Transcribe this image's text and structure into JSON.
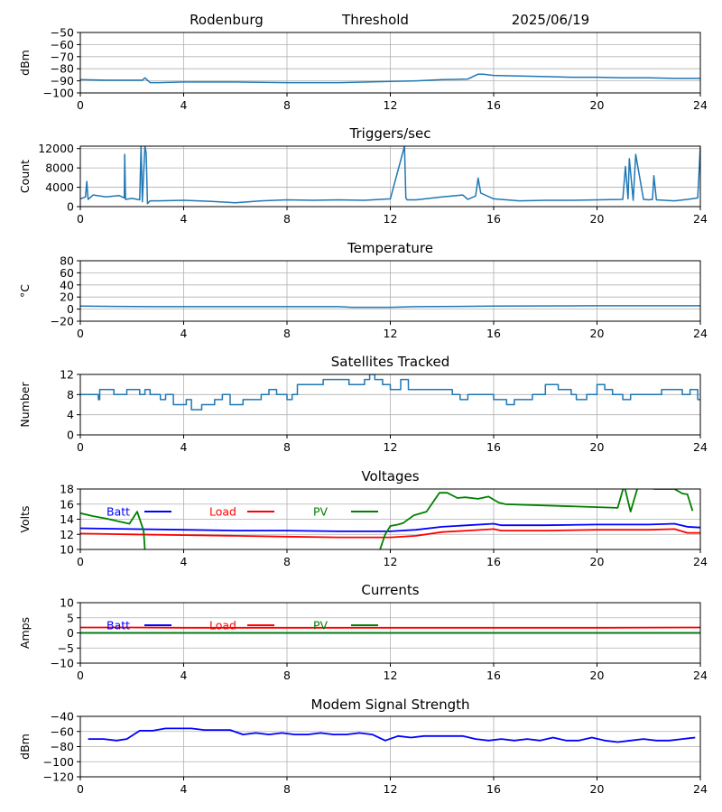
{
  "header": {
    "station": "Rodenburg",
    "mode": "Threshold",
    "date": "2025/06/19"
  },
  "chart_data": [
    {
      "id": "signal",
      "type": "line",
      "title": "",
      "xlabel": "",
      "ylabel": "dBm",
      "xlim": [
        0,
        24
      ],
      "ylim": [
        -100,
        -50
      ],
      "xticks": [
        0,
        4,
        8,
        12,
        16,
        20,
        24
      ],
      "yticks": [
        -100,
        -90,
        -80,
        -70,
        -60,
        -50
      ],
      "ytick_labels": [
        "−100",
        "−90",
        "−80",
        "−70",
        "−60",
        "−50"
      ],
      "grid": true,
      "series": [
        {
          "color": "#1f77b4",
          "width": 1.5,
          "x": [
            0,
            1,
            2,
            2.4,
            2.5,
            2.7,
            3,
            4,
            6,
            8,
            10,
            12,
            13,
            14,
            15,
            15.4,
            15.6,
            16,
            17,
            18,
            19,
            20,
            21,
            22,
            23,
            24
          ],
          "y": [
            -89,
            -89.5,
            -89.5,
            -89.5,
            -87.5,
            -91.5,
            -91.5,
            -91,
            -91,
            -91.5,
            -91.5,
            -90.5,
            -90,
            -89,
            -88.5,
            -84.5,
            -84.5,
            -85.5,
            -86,
            -86.5,
            -87,
            -87,
            -87.5,
            -87.5,
            -88,
            -88
          ]
        }
      ]
    },
    {
      "id": "triggers",
      "type": "line",
      "title": "Triggers/sec",
      "xlabel": "",
      "ylabel": "Count",
      "xlim": [
        0,
        24
      ],
      "ylim": [
        0,
        12500
      ],
      "xticks": [
        0,
        4,
        8,
        12,
        16,
        20,
        24
      ],
      "yticks": [
        0,
        4000,
        8000,
        12000
      ],
      "ytick_labels": [
        "0",
        "4000",
        "8000",
        "12000"
      ],
      "grid": true,
      "series": [
        {
          "color": "#1f77b4",
          "width": 1.5,
          "x": [
            0,
            0.2,
            0.25,
            0.3,
            0.5,
            1,
            1.5,
            1.7,
            1.72,
            1.75,
            2,
            2.3,
            2.35,
            2.4,
            2.5,
            2.55,
            2.6,
            2.7,
            3,
            4,
            5,
            6,
            7,
            8,
            9,
            10,
            11,
            12,
            12.55,
            12.6,
            12.65,
            13,
            14,
            14.8,
            15,
            15.3,
            15.4,
            15.5,
            16,
            17,
            18,
            19,
            20,
            21,
            21.1,
            21.2,
            21.25,
            21.4,
            21.5,
            21.8,
            22,
            22.15,
            22.2,
            22.3,
            23,
            23.5,
            23.9,
            24
          ],
          "y": [
            1600,
            2000,
            5200,
            1500,
            2400,
            2000,
            2300,
            1800,
            10800,
            1500,
            1700,
            1400,
            12500,
            1000,
            12500,
            11000,
            600,
            1200,
            1200,
            1300,
            1100,
            800,
            1200,
            1400,
            1300,
            1400,
            1300,
            1600,
            12500,
            1800,
            1400,
            1400,
            2000,
            2400,
            1500,
            2200,
            5900,
            2800,
            1600,
            1200,
            1300,
            1300,
            1400,
            1500,
            8300,
            1600,
            9900,
            1300,
            10800,
            1500,
            1400,
            1500,
            6400,
            1400,
            1200,
            1500,
            1800,
            12500
          ]
        }
      ]
    },
    {
      "id": "temperature",
      "type": "line",
      "title": "Temperature",
      "xlabel": "",
      "ylabel": "°C",
      "xlim": [
        0,
        24
      ],
      "ylim": [
        -20,
        80
      ],
      "xticks": [
        0,
        4,
        8,
        12,
        16,
        20,
        24
      ],
      "yticks": [
        -20,
        0,
        20,
        40,
        60,
        80
      ],
      "ytick_labels": [
        "−20",
        "0",
        "20",
        "40",
        "60",
        "80"
      ],
      "grid": true,
      "series": [
        {
          "color": "#1f77b4",
          "width": 1.5,
          "x": [
            0,
            3,
            8,
            10,
            10.5,
            12,
            13,
            16,
            20,
            24
          ],
          "y": [
            5,
            4,
            4,
            4,
            3,
            3,
            4,
            5,
            5.5,
            5.5
          ]
        }
      ]
    },
    {
      "id": "satellites",
      "type": "line",
      "title": "Satellites Tracked",
      "xlabel": "",
      "ylabel": "Number",
      "xlim": [
        0,
        24
      ],
      "ylim": [
        0,
        12
      ],
      "xticks": [
        0,
        4,
        8,
        12,
        16,
        20,
        24
      ],
      "yticks": [
        0,
        4,
        8,
        12
      ],
      "ytick_labels": [
        "0",
        "4",
        "8",
        "12"
      ],
      "grid": true,
      "step": true,
      "series": [
        {
          "color": "#1f77b4",
          "width": 1.5,
          "x": [
            0,
            0.4,
            0.7,
            0.75,
            1.3,
            1.8,
            2.3,
            2.5,
            2.7,
            3.1,
            3.3,
            3.6,
            4.1,
            4.3,
            4.7,
            5.2,
            5.5,
            5.8,
            6.3,
            7,
            7.3,
            7.6,
            8,
            8.2,
            8.4,
            9,
            9.4,
            10,
            10.4,
            11,
            11.2,
            11.4,
            11.7,
            12,
            12.4,
            12.7,
            13.5,
            14,
            14.4,
            14.7,
            15,
            16,
            16.5,
            16.8,
            17.5,
            18,
            18.5,
            19,
            19.2,
            19.6,
            20,
            20.3,
            20.6,
            21,
            21.3,
            22,
            22.5,
            23,
            23.3,
            23.6,
            23.9,
            24
          ],
          "y": [
            8,
            8,
            7,
            9,
            8,
            9,
            8,
            9,
            8,
            7,
            8,
            6,
            7,
            5,
            6,
            7,
            8,
            6,
            7,
            8,
            9,
            8,
            7,
            8,
            10,
            10,
            11,
            11,
            10,
            11,
            12,
            11,
            10,
            9,
            11,
            9,
            9,
            9,
            8,
            7,
            8,
            7,
            6,
            7,
            8,
            10,
            9,
            8,
            7,
            8,
            10,
            9,
            8,
            7,
            8,
            8,
            9,
            9,
            8,
            9,
            7,
            7
          ]
        }
      ]
    },
    {
      "id": "voltages",
      "type": "line",
      "title": "Voltages",
      "xlabel": "",
      "ylabel": "Volts",
      "xlim": [
        0,
        24
      ],
      "ylim": [
        10,
        18
      ],
      "xticks": [
        0,
        4,
        8,
        12,
        16,
        20,
        24
      ],
      "yticks": [
        10,
        12,
        14,
        16,
        18
      ],
      "ytick_labels": [
        "10",
        "12",
        "14",
        "16",
        "18"
      ],
      "grid": true,
      "legend": [
        "Batt",
        "Load",
        "PV"
      ],
      "series": [
        {
          "name": "Batt",
          "color": "#0000ff",
          "width": 1.8,
          "x": [
            0,
            2,
            4,
            6,
            8,
            10,
            12,
            13,
            14,
            15,
            16,
            16.3,
            18,
            20,
            21,
            22,
            23,
            23.5,
            24
          ],
          "y": [
            12.8,
            12.7,
            12.6,
            12.5,
            12.5,
            12.4,
            12.4,
            12.6,
            13.0,
            13.2,
            13.4,
            13.2,
            13.2,
            13.3,
            13.3,
            13.3,
            13.4,
            13.0,
            12.9
          ]
        },
        {
          "name": "Load",
          "color": "#ff0000",
          "width": 1.8,
          "x": [
            0,
            2,
            4,
            6,
            8,
            10,
            12,
            13,
            14,
            15,
            16,
            16.3,
            18,
            20,
            21,
            22,
            23,
            23.5,
            24
          ],
          "y": [
            12.1,
            12.0,
            11.9,
            11.8,
            11.7,
            11.6,
            11.6,
            11.8,
            12.3,
            12.5,
            12.7,
            12.5,
            12.5,
            12.6,
            12.6,
            12.6,
            12.7,
            12.2,
            12.2
          ]
        },
        {
          "name": "PV",
          "color": "#008000",
          "width": 1.8,
          "x": [
            0,
            0.5,
            1,
            1.5,
            1.9,
            2.2,
            2.45,
            2.52,
            11.5,
            11.8,
            12,
            12.3,
            12.5,
            12.9,
            13.4,
            13.6,
            13.9,
            14.2,
            14.6,
            14.9,
            15.4,
            15.8,
            16.2,
            16.45,
            20.8,
            21.05,
            21.3,
            21.6,
            21.9,
            22.2,
            22.7,
            23.0,
            23.3,
            23.5,
            23.7
          ],
          "y": [
            14.8,
            14.4,
            14.1,
            13.7,
            13.4,
            15.0,
            12.5,
            9.0,
            9.0,
            12.0,
            13.1,
            13.3,
            13.5,
            14.5,
            15.0,
            16.0,
            17.5,
            17.5,
            16.8,
            16.9,
            16.7,
            17.0,
            16.2,
            16.0,
            15.5,
            18.5,
            15.0,
            18.5,
            18.5,
            18.0,
            18.0,
            18.0,
            17.4,
            17.3,
            15.1
          ]
        }
      ]
    },
    {
      "id": "currents",
      "type": "line",
      "title": "Currents",
      "xlabel": "",
      "ylabel": "Amps",
      "xlim": [
        0,
        24
      ],
      "ylim": [
        -10,
        10
      ],
      "xticks": [
        0,
        4,
        8,
        12,
        16,
        20,
        24
      ],
      "yticks": [
        -10,
        -5,
        0,
        5,
        10
      ],
      "ytick_labels": [
        "−10",
        "−5",
        "0",
        "5",
        "10"
      ],
      "grid": true,
      "legend": [
        "Batt",
        "Load",
        "PV"
      ],
      "series": [
        {
          "name": "Batt",
          "color": "#0000ff",
          "width": 1.8,
          "x": [
            0,
            24
          ],
          "y": [
            0,
            0
          ]
        },
        {
          "name": "Load",
          "color": "#ff0000",
          "width": 1.8,
          "x": [
            0,
            2,
            4,
            8,
            12,
            16,
            20,
            23.5,
            24
          ],
          "y": [
            1.8,
            1.8,
            1.7,
            1.7,
            1.7,
            1.7,
            1.7,
            1.8,
            1.8
          ]
        },
        {
          "name": "PV",
          "color": "#008000",
          "width": 1.8,
          "x": [
            0,
            24
          ],
          "y": [
            0,
            0
          ]
        }
      ]
    },
    {
      "id": "modem",
      "type": "line",
      "title": "Modem Signal Strength",
      "xlabel": "",
      "ylabel": "dBm",
      "xlim": [
        0,
        24
      ],
      "ylim": [
        -120,
        -40
      ],
      "xticks": [
        0,
        4,
        8,
        12,
        16,
        20,
        24
      ],
      "yticks": [
        -120,
        -100,
        -80,
        -60,
        -40
      ],
      "ytick_labels": [
        "−120",
        "−100",
        "−80",
        "−60",
        "−40"
      ],
      "grid": true,
      "series": [
        {
          "color": "#0000ff",
          "width": 1.8,
          "x": [
            0.3,
            0.9,
            1.4,
            1.8,
            2.3,
            2.8,
            3.3,
            3.8,
            4.3,
            4.8,
            5.3,
            5.8,
            6.3,
            6.8,
            7.3,
            7.8,
            8.3,
            8.8,
            9.3,
            9.8,
            10.3,
            10.8,
            11.3,
            11.8,
            12.3,
            12.8,
            13.3,
            13.8,
            14.3,
            14.8,
            15.3,
            15.8,
            16.3,
            16.8,
            17.3,
            17.8,
            18.3,
            18.8,
            19.3,
            19.8,
            20.3,
            20.8,
            21.3,
            21.8,
            22.3,
            22.8,
            23.3,
            23.8
          ],
          "y": [
            -70,
            -70,
            -72,
            -70,
            -59,
            -59,
            -56,
            -56,
            -56,
            -58,
            -58,
            -58,
            -64,
            -62,
            -64,
            -62,
            -64,
            -64,
            -62,
            -64,
            -64,
            -62,
            -64,
            -72,
            -66,
            -68,
            -66,
            -66,
            -66,
            -66,
            -70,
            -72,
            -70,
            -72,
            -70,
            -72,
            -68,
            -72,
            -72,
            -68,
            -72,
            -74,
            -72,
            -70,
            -72,
            -72,
            -70,
            -68
          ]
        }
      ]
    }
  ]
}
